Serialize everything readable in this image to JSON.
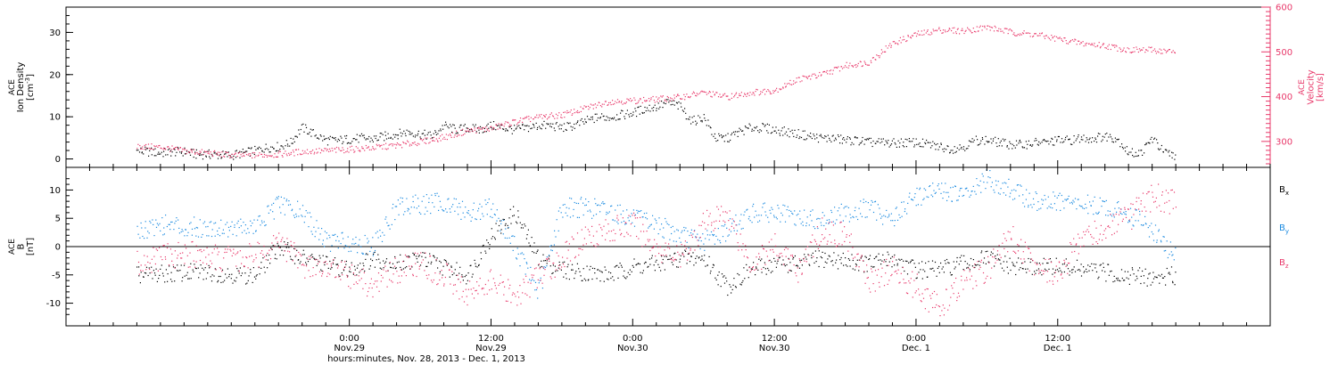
{
  "chart_data": [
    {
      "type": "scatter",
      "panel": "top",
      "left_axis": {
        "label_lines": [
          "ACE",
          "Ion Density"
        ],
        "unit_prefix": "[cm",
        "unit_exponent": "-3",
        "unit_suffix": "]",
        "ylim": [
          -2,
          36
        ],
        "ticks": [
          0,
          10,
          20,
          30
        ],
        "tick_labels": [
          "0",
          "10",
          "20",
          "30"
        ],
        "color": "#000000"
      },
      "right_axis": {
        "label_lines": [
          "ACE",
          "Velocity",
          "[km/s]"
        ],
        "ylim": [
          242,
          600
        ],
        "ticks": [
          300,
          400,
          500,
          600
        ],
        "tick_labels": [
          "300",
          "400",
          "500",
          "600"
        ],
        "color": "#e8386a"
      },
      "series": [
        {
          "axis": "left",
          "color": "#000000",
          "x_hours": [
            0,
            1,
            2,
            3,
            4,
            5,
            6,
            7,
            8,
            9,
            9.5,
            10,
            10.5,
            11,
            12,
            13,
            14,
            15,
            16,
            17,
            18,
            19,
            20,
            21,
            22,
            23,
            24,
            25,
            26,
            27,
            28,
            29,
            30,
            31,
            32,
            33,
            34,
            35,
            36,
            37,
            38,
            39,
            40,
            41,
            42,
            43,
            44,
            45,
            46,
            47,
            48,
            49,
            50,
            51,
            52,
            53,
            54,
            55,
            56,
            57,
            58,
            59,
            60,
            61,
            62,
            63,
            64,
            65,
            66,
            67,
            68,
            69,
            70,
            71,
            72,
            73,
            74,
            75,
            76,
            77,
            78,
            79,
            80,
            81,
            82,
            83,
            84,
            85,
            86,
            87,
            88
          ],
          "values": [
            2,
            1.8,
            1.5,
            1.8,
            1.8,
            1.2,
            1.2,
            1,
            1,
            1.5,
            1.8,
            2,
            2.5,
            2.8,
            3,
            4,
            7.5,
            6,
            4.5,
            4.5,
            4.8,
            5,
            4.8,
            5.5,
            6,
            6.5,
            6,
            5.5,
            8,
            7,
            7.5,
            7,
            8,
            7.5,
            7,
            7.5,
            8,
            8,
            7.5,
            8,
            9,
            10,
            10,
            10.5,
            11,
            12,
            12.5,
            13.5,
            12.5,
            9,
            10,
            5,
            5,
            6.5,
            7.5,
            7.5,
            7,
            6.5,
            6,
            5.5,
            5,
            5,
            4.5,
            4.5,
            4,
            4,
            3.8,
            4,
            4,
            3.5,
            3,
            2.5,
            3,
            4.5,
            4.5,
            4,
            3.5,
            3.5,
            4,
            4,
            4.5,
            4.5,
            5,
            5,
            5.5,
            5,
            1.5,
            1.5,
            5,
            1.5,
            1
          ]
        },
        {
          "axis": "right",
          "color": "#e8386a",
          "x_hours": [
            0,
            2,
            4,
            6,
            8,
            10,
            12,
            14,
            16,
            18,
            20,
            22,
            24,
            26,
            28,
            30,
            32,
            34,
            36,
            38,
            40,
            42,
            44,
            46,
            48,
            50,
            52,
            54,
            56,
            58,
            60,
            62,
            64,
            66,
            68,
            70,
            72,
            74,
            76,
            78,
            80,
            82,
            84,
            86,
            88
          ],
          "values": [
            290,
            288,
            280,
            275,
            270,
            270,
            272,
            278,
            280,
            283,
            287,
            292,
            300,
            310,
            325,
            330,
            345,
            355,
            360,
            375,
            390,
            392,
            395,
            400,
            410,
            400,
            410,
            415,
            440,
            450,
            470,
            478,
            520,
            540,
            550,
            548,
            556,
            545,
            540,
            530,
            520,
            515,
            505,
            505,
            500
          ]
        }
      ]
    },
    {
      "type": "scatter",
      "panel": "bottom",
      "left_axis": {
        "label_lines": [
          "ACE",
          "B",
          "[nT]"
        ],
        "ylim": [
          -14,
          14
        ],
        "ticks": [
          -10,
          -5,
          0,
          5,
          10
        ],
        "tick_labels": [
          "-10",
          "-5",
          "0",
          "5",
          "10"
        ],
        "zero_line": true
      },
      "legend": [
        {
          "base": "B",
          "sub": "x",
          "color": "#000000"
        },
        {
          "base": "B",
          "sub": "y",
          "color": "#1a8ae0"
        },
        {
          "base": "B",
          "sub": "z",
          "color": "#e8386a"
        }
      ],
      "legend_position": "right",
      "series": [
        {
          "legend_index": 0,
          "color": "#000000",
          "x_hours": [
            0,
            2,
            4,
            6,
            8,
            10,
            12,
            14,
            16,
            18,
            20,
            22,
            24,
            26,
            28,
            30,
            32,
            34,
            36,
            38,
            40,
            42,
            44,
            46,
            48,
            50,
            52,
            54,
            56,
            58,
            60,
            62,
            64,
            66,
            68,
            70,
            72,
            74,
            76,
            78,
            80,
            82,
            84,
            86,
            88
          ],
          "values": [
            -5,
            -4.8,
            -4.5,
            -4.5,
            -4.8,
            -5,
            0,
            -2,
            -3,
            -4,
            -2,
            -3,
            -2,
            -3.5,
            -5,
            2,
            6,
            -2,
            -4,
            -4.5,
            -5,
            -3.5,
            -3,
            -2,
            -2,
            -7,
            -4,
            -3,
            -3,
            -2,
            -2.5,
            -3,
            -2,
            -4,
            -4,
            -3,
            -2,
            -3.5,
            -3.5,
            -3.5,
            -4,
            -4.5,
            -5,
            -5.5,
            -5
          ]
        },
        {
          "legend_index": 1,
          "color": "#1a8ae0",
          "x_hours": [
            0,
            2,
            4,
            6,
            8,
            10,
            12,
            14,
            16,
            18,
            20,
            22,
            24,
            26,
            28,
            30,
            32,
            34,
            36,
            38,
            40,
            42,
            44,
            46,
            48,
            50,
            52,
            54,
            56,
            58,
            60,
            62,
            64,
            66,
            68,
            70,
            72,
            74,
            76,
            78,
            80,
            82,
            84,
            86,
            88
          ],
          "values": [
            3,
            4,
            3.5,
            3.5,
            3.5,
            3.5,
            7.5,
            6,
            1,
            1,
            0,
            7,
            7.5,
            8,
            6,
            7,
            0,
            -8,
            7,
            7,
            6.5,
            5,
            4,
            2,
            1,
            3,
            6,
            6,
            5,
            5,
            6,
            7,
            5,
            9,
            10,
            9,
            12,
            10,
            8,
            8,
            7.5,
            7,
            6,
            3,
            -2
          ]
        },
        {
          "legend_index": 2,
          "color": "#e8386a",
          "x_hours": [
            0,
            2,
            4,
            6,
            8,
            10,
            12,
            14,
            16,
            18,
            20,
            22,
            24,
            26,
            28,
            30,
            32,
            34,
            36,
            38,
            40,
            42,
            44,
            46,
            48,
            50,
            52,
            54,
            56,
            58,
            60,
            62,
            64,
            66,
            68,
            70,
            72,
            74,
            76,
            78,
            80,
            82,
            84,
            86,
            88
          ],
          "values": [
            -3,
            -2,
            -1,
            -2,
            -2,
            -1.5,
            1,
            -3,
            -4,
            -5,
            -7,
            -4,
            -3,
            -5,
            -8,
            -6,
            -9,
            -5,
            -2,
            2,
            3,
            4,
            0,
            -2,
            4,
            6,
            -3,
            0,
            -4,
            3,
            2,
            -6,
            -4,
            -7,
            -11,
            -6,
            -4,
            2,
            -3,
            -5,
            2,
            3,
            5,
            9,
            8
          ]
        }
      ]
    }
  ],
  "x_axis": {
    "range_hours": [
      -6,
      96
    ],
    "minor_tick_hours": 2,
    "major_ticks": [
      {
        "hour": 18,
        "time": "0:00",
        "date": "Nov.29"
      },
      {
        "hour": 30,
        "time": "12:00",
        "date": "Nov.29"
      },
      {
        "hour": 42,
        "time": "0:00",
        "date": "Nov.30"
      },
      {
        "hour": 54,
        "time": "12:00",
        "date": "Nov.30"
      },
      {
        "hour": 66,
        "time": "0:00",
        "date": "Dec. 1"
      },
      {
        "hour": 78,
        "time": "12:00",
        "date": "Dec. 1"
      }
    ],
    "title": "hours:minutes, Nov. 28, 2013 - Dec. 1, 2013"
  }
}
